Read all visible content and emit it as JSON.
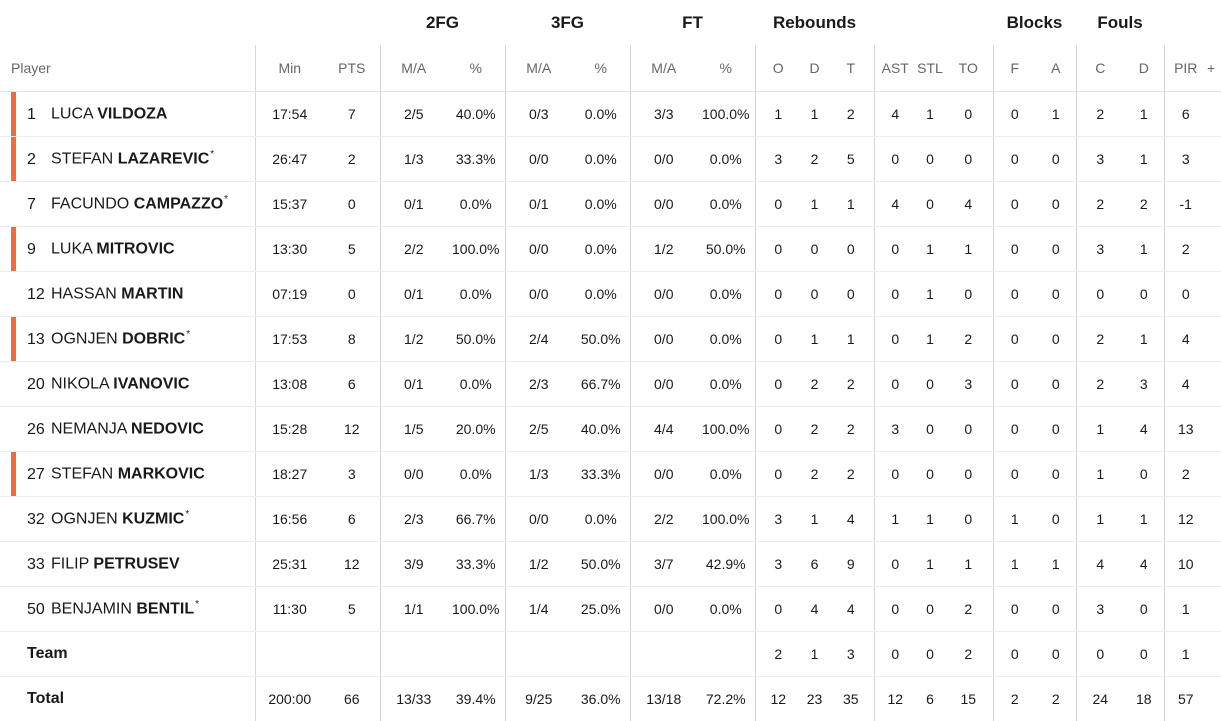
{
  "groups": {
    "fg2": "2FG",
    "fg3": "3FG",
    "ft": "FT",
    "rebounds": "Rebounds",
    "blocks": "Blocks",
    "fouls": "Fouls"
  },
  "columns": {
    "player": "Player",
    "min": "Min",
    "pts": "PTS",
    "fg2_ma": "M/A",
    "fg2_pct": "%",
    "fg3_ma": "M/A",
    "fg3_pct": "%",
    "ft_ma": "M/A",
    "ft_pct": "%",
    "reb_o": "O",
    "reb_d": "D",
    "reb_t": "T",
    "ast": "AST",
    "stl": "STL",
    "to": "TO",
    "blk_f": "F",
    "blk_a": "A",
    "foul_c": "C",
    "foul_d": "D",
    "pir": "PIR",
    "extra": "+"
  },
  "starter_color": "#f36b3b",
  "players": [
    {
      "num": "1",
      "first": "LUCA",
      "last": "VILDOZA",
      "star": "",
      "starter": true,
      "min": "17:54",
      "pts": "7",
      "fg2_ma": "2/5",
      "fg2_pct": "40.0%",
      "fg3_ma": "0/3",
      "fg3_pct": "0.0%",
      "ft_ma": "3/3",
      "ft_pct": "100.0%",
      "reb_o": "1",
      "reb_d": "1",
      "reb_t": "2",
      "ast": "4",
      "stl": "1",
      "to": "0",
      "blk_f": "0",
      "blk_a": "1",
      "foul_c": "2",
      "foul_d": "1",
      "pir": "6"
    },
    {
      "num": "2",
      "first": "STEFAN",
      "last": "LAZAREVIC",
      "star": "*",
      "starter": true,
      "min": "26:47",
      "pts": "2",
      "fg2_ma": "1/3",
      "fg2_pct": "33.3%",
      "fg3_ma": "0/0",
      "fg3_pct": "0.0%",
      "ft_ma": "0/0",
      "ft_pct": "0.0%",
      "reb_o": "3",
      "reb_d": "2",
      "reb_t": "5",
      "ast": "0",
      "stl": "0",
      "to": "0",
      "blk_f": "0",
      "blk_a": "0",
      "foul_c": "3",
      "foul_d": "1",
      "pir": "3"
    },
    {
      "num": "7",
      "first": "FACUNDO",
      "last": "CAMPAZZO",
      "star": "*",
      "starter": false,
      "min": "15:37",
      "pts": "0",
      "fg2_ma": "0/1",
      "fg2_pct": "0.0%",
      "fg3_ma": "0/1",
      "fg3_pct": "0.0%",
      "ft_ma": "0/0",
      "ft_pct": "0.0%",
      "reb_o": "0",
      "reb_d": "1",
      "reb_t": "1",
      "ast": "4",
      "stl": "0",
      "to": "4",
      "blk_f": "0",
      "blk_a": "0",
      "foul_c": "2",
      "foul_d": "2",
      "pir": "-1"
    },
    {
      "num": "9",
      "first": "LUKA",
      "last": "MITROVIC",
      "star": "",
      "starter": true,
      "min": "13:30",
      "pts": "5",
      "fg2_ma": "2/2",
      "fg2_pct": "100.0%",
      "fg3_ma": "0/0",
      "fg3_pct": "0.0%",
      "ft_ma": "1/2",
      "ft_pct": "50.0%",
      "reb_o": "0",
      "reb_d": "0",
      "reb_t": "0",
      "ast": "0",
      "stl": "1",
      "to": "1",
      "blk_f": "0",
      "blk_a": "0",
      "foul_c": "3",
      "foul_d": "1",
      "pir": "2"
    },
    {
      "num": "12",
      "first": "HASSAN",
      "last": "MARTIN",
      "star": "",
      "starter": false,
      "min": "07:19",
      "pts": "0",
      "fg2_ma": "0/1",
      "fg2_pct": "0.0%",
      "fg3_ma": "0/0",
      "fg3_pct": "0.0%",
      "ft_ma": "0/0",
      "ft_pct": "0.0%",
      "reb_o": "0",
      "reb_d": "0",
      "reb_t": "0",
      "ast": "0",
      "stl": "1",
      "to": "0",
      "blk_f": "0",
      "blk_a": "0",
      "foul_c": "0",
      "foul_d": "0",
      "pir": "0"
    },
    {
      "num": "13",
      "first": "OGNJEN",
      "last": "DOBRIC",
      "star": "*",
      "starter": true,
      "min": "17:53",
      "pts": "8",
      "fg2_ma": "1/2",
      "fg2_pct": "50.0%",
      "fg3_ma": "2/4",
      "fg3_pct": "50.0%",
      "ft_ma": "0/0",
      "ft_pct": "0.0%",
      "reb_o": "0",
      "reb_d": "1",
      "reb_t": "1",
      "ast": "0",
      "stl": "1",
      "to": "2",
      "blk_f": "0",
      "blk_a": "0",
      "foul_c": "2",
      "foul_d": "1",
      "pir": "4"
    },
    {
      "num": "20",
      "first": "NIKOLA",
      "last": "IVANOVIC",
      "star": "",
      "starter": false,
      "min": "13:08",
      "pts": "6",
      "fg2_ma": "0/1",
      "fg2_pct": "0.0%",
      "fg3_ma": "2/3",
      "fg3_pct": "66.7%",
      "ft_ma": "0/0",
      "ft_pct": "0.0%",
      "reb_o": "0",
      "reb_d": "2",
      "reb_t": "2",
      "ast": "0",
      "stl": "0",
      "to": "3",
      "blk_f": "0",
      "blk_a": "0",
      "foul_c": "2",
      "foul_d": "3",
      "pir": "4"
    },
    {
      "num": "26",
      "first": "NEMANJA",
      "last": "NEDOVIC",
      "star": "",
      "starter": false,
      "min": "15:28",
      "pts": "12",
      "fg2_ma": "1/5",
      "fg2_pct": "20.0%",
      "fg3_ma": "2/5",
      "fg3_pct": "40.0%",
      "ft_ma": "4/4",
      "ft_pct": "100.0%",
      "reb_o": "0",
      "reb_d": "2",
      "reb_t": "2",
      "ast": "3",
      "stl": "0",
      "to": "0",
      "blk_f": "0",
      "blk_a": "0",
      "foul_c": "1",
      "foul_d": "4",
      "pir": "13"
    },
    {
      "num": "27",
      "first": "STEFAN",
      "last": "MARKOVIC",
      "star": "",
      "starter": true,
      "min": "18:27",
      "pts": "3",
      "fg2_ma": "0/0",
      "fg2_pct": "0.0%",
      "fg3_ma": "1/3",
      "fg3_pct": "33.3%",
      "ft_ma": "0/0",
      "ft_pct": "0.0%",
      "reb_o": "0",
      "reb_d": "2",
      "reb_t": "2",
      "ast": "0",
      "stl": "0",
      "to": "0",
      "blk_f": "0",
      "blk_a": "0",
      "foul_c": "1",
      "foul_d": "0",
      "pir": "2"
    },
    {
      "num": "32",
      "first": "OGNJEN",
      "last": "KUZMIC",
      "star": "*",
      "starter": false,
      "min": "16:56",
      "pts": "6",
      "fg2_ma": "2/3",
      "fg2_pct": "66.7%",
      "fg3_ma": "0/0",
      "fg3_pct": "0.0%",
      "ft_ma": "2/2",
      "ft_pct": "100.0%",
      "reb_o": "3",
      "reb_d": "1",
      "reb_t": "4",
      "ast": "1",
      "stl": "1",
      "to": "0",
      "blk_f": "1",
      "blk_a": "0",
      "foul_c": "1",
      "foul_d": "1",
      "pir": "12"
    },
    {
      "num": "33",
      "first": "FILIP",
      "last": "PETRUSEV",
      "star": "",
      "starter": false,
      "min": "25:31",
      "pts": "12",
      "fg2_ma": "3/9",
      "fg2_pct": "33.3%",
      "fg3_ma": "1/2",
      "fg3_pct": "50.0%",
      "ft_ma": "3/7",
      "ft_pct": "42.9%",
      "reb_o": "3",
      "reb_d": "6",
      "reb_t": "9",
      "ast": "0",
      "stl": "1",
      "to": "1",
      "blk_f": "1",
      "blk_a": "1",
      "foul_c": "4",
      "foul_d": "4",
      "pir": "10"
    },
    {
      "num": "50",
      "first": "BENJAMIN",
      "last": "BENTIL",
      "star": "*",
      "starter": false,
      "min": "11:30",
      "pts": "5",
      "fg2_ma": "1/1",
      "fg2_pct": "100.0%",
      "fg3_ma": "1/4",
      "fg3_pct": "25.0%",
      "ft_ma": "0/0",
      "ft_pct": "0.0%",
      "reb_o": "0",
      "reb_d": "4",
      "reb_t": "4",
      "ast": "0",
      "stl": "0",
      "to": "2",
      "blk_f": "0",
      "blk_a": "0",
      "foul_c": "3",
      "foul_d": "0",
      "pir": "1"
    }
  ],
  "team": {
    "label": "Team",
    "min": "",
    "pts": "",
    "fg2_ma": "",
    "fg2_pct": "",
    "fg3_ma": "",
    "fg3_pct": "",
    "ft_ma": "",
    "ft_pct": "",
    "reb_o": "2",
    "reb_d": "1",
    "reb_t": "3",
    "ast": "0",
    "stl": "0",
    "to": "2",
    "blk_f": "0",
    "blk_a": "0",
    "foul_c": "0",
    "foul_d": "0",
    "pir": "1"
  },
  "total": {
    "label": "Total",
    "min": "200:00",
    "pts": "66",
    "fg2_ma": "13/33",
    "fg2_pct": "39.4%",
    "fg3_ma": "9/25",
    "fg3_pct": "36.0%",
    "ft_ma": "13/18",
    "ft_pct": "72.2%",
    "reb_o": "12",
    "reb_d": "23",
    "reb_t": "35",
    "ast": "12",
    "stl": "6",
    "to": "15",
    "blk_f": "2",
    "blk_a": "2",
    "foul_c": "24",
    "foul_d": "18",
    "pir": "57"
  }
}
